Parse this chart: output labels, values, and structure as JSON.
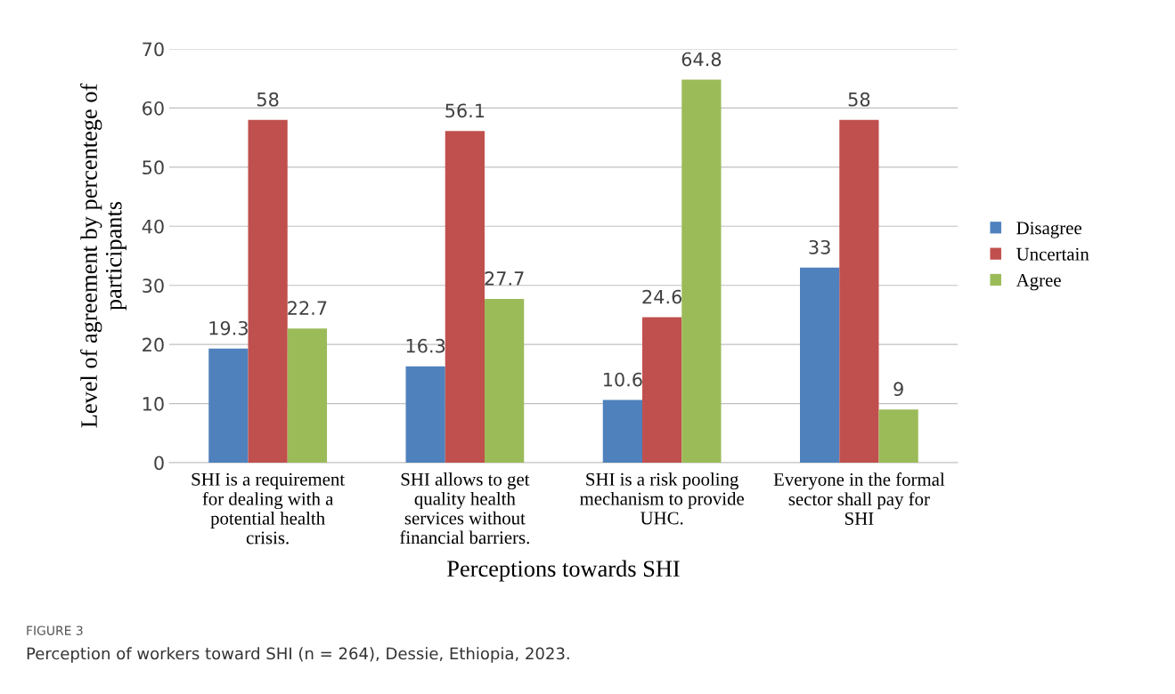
{
  "chart_data": {
    "type": "bar",
    "xlabel": "Perceptions towards SHI",
    "ylabel": "Level of agreement by percentege of participants",
    "categories": [
      "SHI is a requirement for dealing with a potential health crisis.",
      "SHI allows to get quality health services without financial barriers.",
      "SHI is a risk pooling mechanism to provide UHC.",
      "Everyone in the formal sector shall pay for SHI"
    ],
    "series": [
      {
        "name": "Disagree",
        "color": "#4f81bd",
        "values": [
          19.3,
          16.3,
          10.6,
          33
        ]
      },
      {
        "name": "Uncertain",
        "color": "#c0504d",
        "values": [
          58,
          56.1,
          24.6,
          58
        ]
      },
      {
        "name": "Agree",
        "color": "#9bbb59",
        "values": [
          22.7,
          27.7,
          64.8,
          9
        ]
      }
    ],
    "ylim": [
      0,
      70
    ],
    "yticks": [
      0,
      10,
      20,
      30,
      40,
      50,
      60,
      70
    ],
    "grid": "y",
    "legend": "right",
    "data_labels": true,
    "annotations": [
      "FIGURE 3",
      "Perception of workers toward SHI (n = 264), Dessie, Ethiopia, 2023."
    ]
  }
}
